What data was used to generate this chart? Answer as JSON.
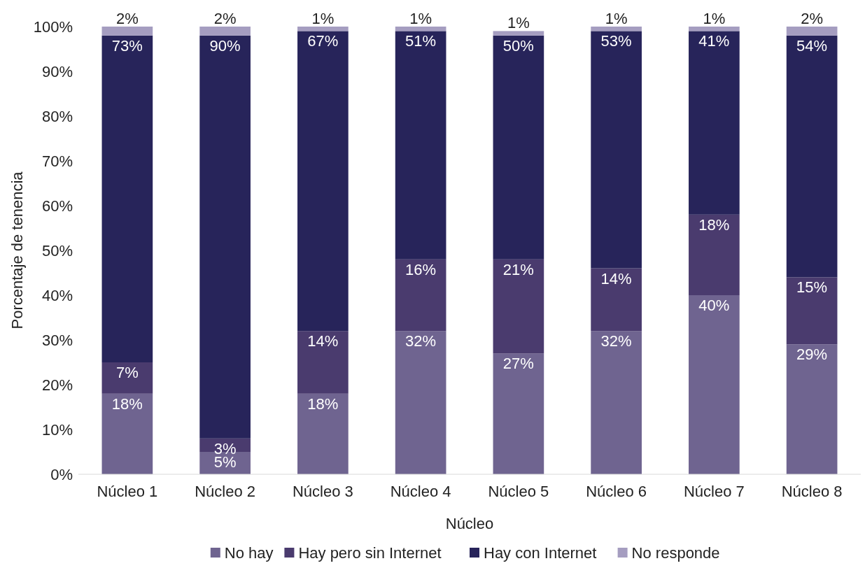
{
  "chart_data": {
    "type": "bar",
    "stacked": true,
    "xlabel": "Núcleo",
    "ylabel": "Porcentaje de tenencia",
    "categories": [
      "Núcleo 1",
      "Núcleo 2",
      "Núcleo 3",
      "Núcleo 4",
      "Núcleo 5",
      "Núcleo 6",
      "Núcleo 7",
      "Núcleo 8"
    ],
    "series": [
      {
        "name": "No hay",
        "color": "#6f6490",
        "values": [
          18,
          5,
          18,
          32,
          27,
          32,
          40,
          29
        ],
        "value_labels": [
          "18%",
          "5%",
          "18%",
          "32%",
          "27%",
          "32%",
          "40%",
          "29%"
        ]
      },
      {
        "name": "Hay pero sin Internet",
        "color": "#4a3b6e",
        "values": [
          7,
          3,
          14,
          16,
          21,
          14,
          18,
          15
        ],
        "value_labels": [
          "7%",
          "3%",
          "14%",
          "16%",
          "21%",
          "14%",
          "18%",
          "15%"
        ]
      },
      {
        "name": "Hay con Internet",
        "color": "#27245a",
        "values": [
          73,
          90,
          67,
          51,
          50,
          53,
          41,
          54
        ],
        "value_labels": [
          "73%",
          "90%",
          "67%",
          "51%",
          "50%",
          "53%",
          "41%",
          "54%"
        ]
      },
      {
        "name": "No responde",
        "color": "#a59dc0",
        "values": [
          2,
          2,
          1,
          1,
          1,
          1,
          1,
          2
        ],
        "value_labels": [
          "2%",
          "2%",
          "1%",
          "1%",
          "1%",
          "1%",
          "1%",
          "2%"
        ]
      }
    ],
    "ylim": [
      0,
      100
    ],
    "yticks": [
      {
        "value": 0,
        "label": "0%"
      },
      {
        "value": 10,
        "label": "10%"
      },
      {
        "value": 20,
        "label": "20%"
      },
      {
        "value": 30,
        "label": "30%"
      },
      {
        "value": 40,
        "label": "40%"
      },
      {
        "value": 50,
        "label": "50%"
      },
      {
        "value": 60,
        "label": "60%"
      },
      {
        "value": 70,
        "label": "70%"
      },
      {
        "value": 80,
        "label": "80%"
      },
      {
        "value": 90,
        "label": "90%"
      },
      {
        "value": 100,
        "label": "100%"
      }
    ],
    "legend": "bottom",
    "grid": false
  }
}
